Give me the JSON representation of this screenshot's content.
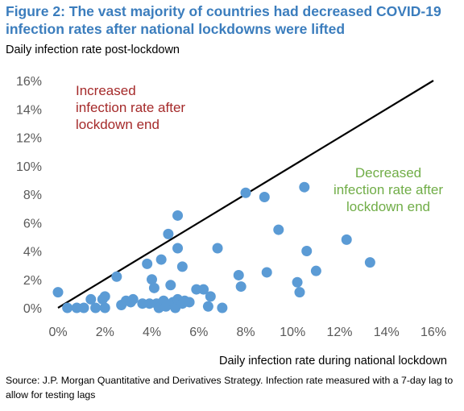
{
  "header": {
    "title": "Figure 2: The vast majority of countries had decreased COVID-19 infection rates after national lockdowns were lifted"
  },
  "footer": {
    "source": "Source: J.P. Morgan Quantitative and Derivatives Strategy. Infection rate measured with a 7-day lag to allow for testing lags"
  },
  "colors": {
    "title": "#3b7dbd",
    "points": "#5b9bd5",
    "increased_annotation": "#a52a2a",
    "decreased_annotation": "#70ad47",
    "diagonal": "#000000"
  },
  "chart_data": {
    "type": "scatter",
    "xlabel": "Daily infection rate during national lockdown",
    "ylabel": "Daily infection rate post-lockdown",
    "xlim": [
      0,
      16
    ],
    "ylim": [
      0,
      16
    ],
    "unit": "%",
    "xticks": [
      "0%",
      "2%",
      "4%",
      "6%",
      "8%",
      "10%",
      "12%",
      "14%",
      "16%"
    ],
    "yticks": [
      "0%",
      "2%",
      "4%",
      "6%",
      "8%",
      "10%",
      "12%",
      "14%",
      "16%"
    ],
    "grid": false,
    "reference_line": {
      "from": [
        0,
        0
      ],
      "to": [
        16,
        16
      ],
      "label": ""
    },
    "annotations": [
      {
        "lines": [
          "Increased",
          "infection rate after",
          "lockdown end"
        ],
        "color": "#a52a2a"
      },
      {
        "lines": [
          "Decreased",
          "infection rate after",
          "lockdown end"
        ],
        "color": "#70ad47"
      }
    ],
    "points": [
      {
        "x": 0.0,
        "y": 1.1
      },
      {
        "x": 0.4,
        "y": 0.0
      },
      {
        "x": 0.8,
        "y": 0.0
      },
      {
        "x": 1.1,
        "y": 0.0
      },
      {
        "x": 1.4,
        "y": 0.6
      },
      {
        "x": 1.6,
        "y": 0.0
      },
      {
        "x": 1.9,
        "y": 0.6
      },
      {
        "x": 2.0,
        "y": 0.8
      },
      {
        "x": 2.0,
        "y": 0.0
      },
      {
        "x": 2.5,
        "y": 2.2
      },
      {
        "x": 2.7,
        "y": 0.2
      },
      {
        "x": 2.9,
        "y": 0.5
      },
      {
        "x": 3.1,
        "y": 0.4
      },
      {
        "x": 3.2,
        "y": 0.6
      },
      {
        "x": 3.6,
        "y": 0.3
      },
      {
        "x": 3.8,
        "y": 3.1
      },
      {
        "x": 3.9,
        "y": 0.3
      },
      {
        "x": 4.0,
        "y": 2.0
      },
      {
        "x": 4.1,
        "y": 1.4
      },
      {
        "x": 4.2,
        "y": 0.3
      },
      {
        "x": 4.3,
        "y": 0.0
      },
      {
        "x": 4.4,
        "y": 3.4
      },
      {
        "x": 4.5,
        "y": 0.5
      },
      {
        "x": 4.6,
        "y": 0.1
      },
      {
        "x": 4.7,
        "y": 5.2
      },
      {
        "x": 4.8,
        "y": 1.6
      },
      {
        "x": 4.9,
        "y": 0.4
      },
      {
        "x": 5.0,
        "y": 0.0
      },
      {
        "x": 5.1,
        "y": 0.6
      },
      {
        "x": 5.1,
        "y": 4.2
      },
      {
        "x": 5.1,
        "y": 6.5
      },
      {
        "x": 5.3,
        "y": 2.9
      },
      {
        "x": 5.3,
        "y": 0.3
      },
      {
        "x": 5.4,
        "y": 0.5
      },
      {
        "x": 5.6,
        "y": 0.4
      },
      {
        "x": 5.9,
        "y": 1.3
      },
      {
        "x": 6.2,
        "y": 1.3
      },
      {
        "x": 6.4,
        "y": 0.1
      },
      {
        "x": 6.5,
        "y": 0.8
      },
      {
        "x": 6.8,
        "y": 4.2
      },
      {
        "x": 7.0,
        "y": 0.0
      },
      {
        "x": 7.7,
        "y": 2.3
      },
      {
        "x": 7.8,
        "y": 1.5
      },
      {
        "x": 8.0,
        "y": 8.1
      },
      {
        "x": 8.8,
        "y": 7.8
      },
      {
        "x": 8.9,
        "y": 2.5
      },
      {
        "x": 9.4,
        "y": 5.5
      },
      {
        "x": 10.2,
        "y": 1.8
      },
      {
        "x": 10.3,
        "y": 1.1
      },
      {
        "x": 10.5,
        "y": 8.5
      },
      {
        "x": 10.6,
        "y": 4.0
      },
      {
        "x": 11.0,
        "y": 2.6
      },
      {
        "x": 12.3,
        "y": 4.8
      },
      {
        "x": 13.3,
        "y": 3.2
      }
    ]
  }
}
